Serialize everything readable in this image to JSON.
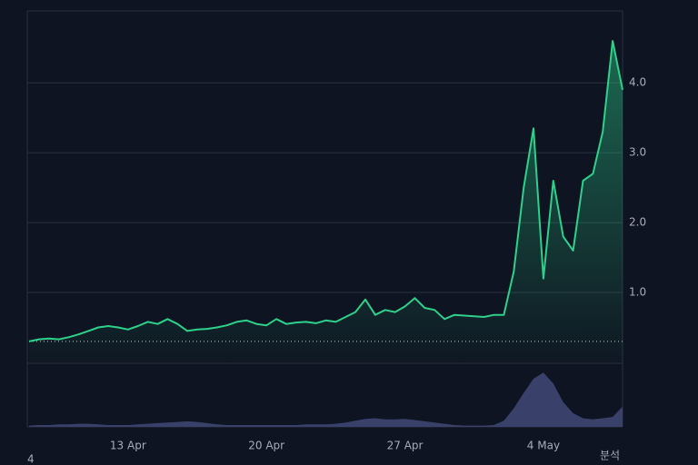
{
  "chart_data": {
    "type": "line",
    "categories": [
      null,
      null,
      null,
      null,
      null,
      null,
      null,
      null,
      null,
      null,
      "13 Apr",
      null,
      null,
      null,
      null,
      null,
      null,
      null,
      null,
      null,
      null,
      null,
      null,
      null,
      "20 Apr",
      null,
      null,
      null,
      null,
      null,
      null,
      null,
      null,
      null,
      null,
      null,
      null,
      null,
      "27 Apr",
      null,
      null,
      null,
      null,
      null,
      null,
      null,
      null,
      null,
      null,
      null,
      null,
      null,
      "4 May",
      null,
      null,
      null,
      null,
      null,
      null,
      null,
      null
    ],
    "series": [
      {
        "color": "#2ed18a",
        "values": [
          0.3,
          0.33,
          0.34,
          0.33,
          0.36,
          0.4,
          0.45,
          0.5,
          0.52,
          0.5,
          0.47,
          0.52,
          0.58,
          0.55,
          0.62,
          0.55,
          0.45,
          0.47,
          0.48,
          0.5,
          0.53,
          0.58,
          0.6,
          0.55,
          0.53,
          0.62,
          0.55,
          0.57,
          0.58,
          0.56,
          0.6,
          0.58,
          0.65,
          0.72,
          0.9,
          0.68,
          0.75,
          0.72,
          0.8,
          0.92,
          0.78,
          0.75,
          0.62,
          0.68,
          0.67,
          0.66,
          0.65,
          0.68,
          0.68,
          1.3,
          2.5,
          3.35,
          1.2,
          2.6,
          1.8,
          1.6,
          2.6,
          2.7,
          3.3,
          4.6,
          3.9
        ]
      },
      {
        "color": "#39416b",
        "axis": "y2",
        "values": [
          2,
          3,
          3,
          4,
          4,
          5,
          5,
          4,
          3,
          3,
          3,
          4,
          5,
          6,
          7,
          8,
          9,
          8,
          6,
          4,
          3,
          3,
          3,
          3,
          3,
          3,
          3,
          3,
          4,
          4,
          4,
          5,
          7,
          10,
          13,
          14,
          12,
          12,
          13,
          11,
          9,
          7,
          5,
          3,
          2,
          2,
          2,
          3,
          10,
          30,
          55,
          78,
          88,
          70,
          40,
          22,
          14,
          12,
          14,
          16,
          33
        ]
      }
    ],
    "ylim": [
      0,
      5.03
    ],
    "yticks": [
      {
        "value": 1,
        "label": "1.0"
      },
      {
        "value": 2,
        "label": "2.0"
      },
      {
        "value": 3,
        "label": "3.0"
      },
      {
        "value": 4,
        "label": "4.0"
      }
    ],
    "y2lim": [
      0,
      100
    ],
    "baseline": 0.3,
    "grid": true,
    "corner_texts": [
      "4",
      "분석"
    ]
  }
}
